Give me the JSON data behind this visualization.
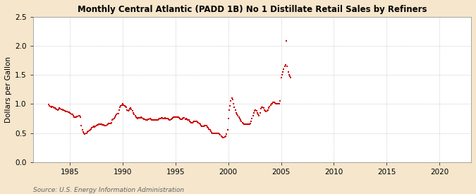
{
  "title": "Monthly Central Atlantic (PADD 1B) No 1 Distillate Retail Sales by Refiners",
  "ylabel": "Dollars per Gallon",
  "source": "Source: U.S. Energy Information Administration",
  "figure_bg": "#f5e6cc",
  "plot_bg": "#ffffff",
  "dot_color": "#cc0000",
  "xlim": [
    1981.5,
    2023
  ],
  "ylim": [
    0.0,
    2.5
  ],
  "yticks": [
    0.0,
    0.5,
    1.0,
    1.5,
    2.0,
    2.5
  ],
  "xticks": [
    1985,
    1990,
    1995,
    2000,
    2005,
    2010,
    2015,
    2020
  ],
  "data": [
    [
      1983.0,
      0.99
    ],
    [
      1983.08,
      0.97
    ],
    [
      1983.17,
      0.96
    ],
    [
      1983.25,
      0.95
    ],
    [
      1983.33,
      0.96
    ],
    [
      1983.42,
      0.94
    ],
    [
      1983.5,
      0.93
    ],
    [
      1983.58,
      0.93
    ],
    [
      1983.67,
      0.92
    ],
    [
      1983.75,
      0.91
    ],
    [
      1983.83,
      0.9
    ],
    [
      1983.92,
      0.91
    ],
    [
      1984.0,
      0.93
    ],
    [
      1984.08,
      0.92
    ],
    [
      1984.17,
      0.91
    ],
    [
      1984.25,
      0.91
    ],
    [
      1984.33,
      0.9
    ],
    [
      1984.42,
      0.89
    ],
    [
      1984.5,
      0.88
    ],
    [
      1984.58,
      0.87
    ],
    [
      1984.67,
      0.87
    ],
    [
      1984.75,
      0.87
    ],
    [
      1984.83,
      0.86
    ],
    [
      1984.92,
      0.86
    ],
    [
      1985.0,
      0.85
    ],
    [
      1985.08,
      0.84
    ],
    [
      1985.17,
      0.82
    ],
    [
      1985.25,
      0.82
    ],
    [
      1985.33,
      0.8
    ],
    [
      1985.42,
      0.78
    ],
    [
      1985.5,
      0.77
    ],
    [
      1985.58,
      0.78
    ],
    [
      1985.67,
      0.79
    ],
    [
      1985.75,
      0.79
    ],
    [
      1985.83,
      0.8
    ],
    [
      1985.92,
      0.8
    ],
    [
      1986.0,
      0.78
    ],
    [
      1986.08,
      0.63
    ],
    [
      1986.17,
      0.55
    ],
    [
      1986.25,
      0.52
    ],
    [
      1986.33,
      0.5
    ],
    [
      1986.42,
      0.48
    ],
    [
      1986.5,
      0.49
    ],
    [
      1986.58,
      0.5
    ],
    [
      1986.67,
      0.52
    ],
    [
      1986.75,
      0.53
    ],
    [
      1986.83,
      0.54
    ],
    [
      1986.92,
      0.55
    ],
    [
      1987.0,
      0.57
    ],
    [
      1987.08,
      0.59
    ],
    [
      1987.17,
      0.61
    ],
    [
      1987.25,
      0.62
    ],
    [
      1987.33,
      0.61
    ],
    [
      1987.42,
      0.62
    ],
    [
      1987.5,
      0.63
    ],
    [
      1987.58,
      0.64
    ],
    [
      1987.67,
      0.64
    ],
    [
      1987.75,
      0.65
    ],
    [
      1987.83,
      0.65
    ],
    [
      1987.92,
      0.65
    ],
    [
      1988.0,
      0.65
    ],
    [
      1988.08,
      0.64
    ],
    [
      1988.17,
      0.64
    ],
    [
      1988.25,
      0.63
    ],
    [
      1988.33,
      0.63
    ],
    [
      1988.42,
      0.63
    ],
    [
      1988.5,
      0.64
    ],
    [
      1988.58,
      0.65
    ],
    [
      1988.67,
      0.66
    ],
    [
      1988.75,
      0.67
    ],
    [
      1988.83,
      0.67
    ],
    [
      1988.92,
      0.68
    ],
    [
      1989.0,
      0.73
    ],
    [
      1989.08,
      0.74
    ],
    [
      1989.17,
      0.75
    ],
    [
      1989.25,
      0.78
    ],
    [
      1989.33,
      0.8
    ],
    [
      1989.42,
      0.82
    ],
    [
      1989.5,
      0.83
    ],
    [
      1989.58,
      0.84
    ],
    [
      1989.67,
      0.9
    ],
    [
      1989.75,
      0.95
    ],
    [
      1989.83,
      0.97
    ],
    [
      1989.92,
      0.98
    ],
    [
      1990.0,
      1.0
    ],
    [
      1990.08,
      0.98
    ],
    [
      1990.17,
      0.97
    ],
    [
      1990.25,
      0.96
    ],
    [
      1990.33,
      0.94
    ],
    [
      1990.42,
      0.9
    ],
    [
      1990.5,
      0.88
    ],
    [
      1990.58,
      0.9
    ],
    [
      1990.67,
      0.92
    ],
    [
      1990.75,
      0.93
    ],
    [
      1990.83,
      0.91
    ],
    [
      1990.92,
      0.88
    ],
    [
      1991.0,
      0.85
    ],
    [
      1991.08,
      0.82
    ],
    [
      1991.17,
      0.8
    ],
    [
      1991.25,
      0.77
    ],
    [
      1991.33,
      0.76
    ],
    [
      1991.42,
      0.75
    ],
    [
      1991.5,
      0.76
    ],
    [
      1991.58,
      0.76
    ],
    [
      1991.67,
      0.76
    ],
    [
      1991.75,
      0.77
    ],
    [
      1991.83,
      0.76
    ],
    [
      1991.92,
      0.75
    ],
    [
      1992.0,
      0.74
    ],
    [
      1992.08,
      0.74
    ],
    [
      1992.17,
      0.73
    ],
    [
      1992.25,
      0.72
    ],
    [
      1992.33,
      0.73
    ],
    [
      1992.42,
      0.74
    ],
    [
      1992.5,
      0.74
    ],
    [
      1992.58,
      0.75
    ],
    [
      1992.67,
      0.74
    ],
    [
      1992.75,
      0.73
    ],
    [
      1992.83,
      0.72
    ],
    [
      1992.92,
      0.72
    ],
    [
      1993.0,
      0.73
    ],
    [
      1993.08,
      0.73
    ],
    [
      1993.17,
      0.72
    ],
    [
      1993.25,
      0.72
    ],
    [
      1993.33,
      0.73
    ],
    [
      1993.42,
      0.74
    ],
    [
      1993.5,
      0.75
    ],
    [
      1993.58,
      0.75
    ],
    [
      1993.67,
      0.76
    ],
    [
      1993.75,
      0.76
    ],
    [
      1993.83,
      0.75
    ],
    [
      1993.92,
      0.75
    ],
    [
      1994.0,
      0.76
    ],
    [
      1994.08,
      0.75
    ],
    [
      1994.17,
      0.75
    ],
    [
      1994.25,
      0.75
    ],
    [
      1994.33,
      0.74
    ],
    [
      1994.42,
      0.73
    ],
    [
      1994.5,
      0.73
    ],
    [
      1994.58,
      0.74
    ],
    [
      1994.67,
      0.75
    ],
    [
      1994.75,
      0.76
    ],
    [
      1994.83,
      0.77
    ],
    [
      1994.92,
      0.78
    ],
    [
      1995.0,
      0.78
    ],
    [
      1995.08,
      0.78
    ],
    [
      1995.17,
      0.78
    ],
    [
      1995.25,
      0.77
    ],
    [
      1995.33,
      0.76
    ],
    [
      1995.42,
      0.75
    ],
    [
      1995.5,
      0.74
    ],
    [
      1995.58,
      0.74
    ],
    [
      1995.67,
      0.75
    ],
    [
      1995.75,
      0.76
    ],
    [
      1995.83,
      0.76
    ],
    [
      1995.92,
      0.74
    ],
    [
      1996.0,
      0.75
    ],
    [
      1996.08,
      0.74
    ],
    [
      1996.17,
      0.73
    ],
    [
      1996.25,
      0.72
    ],
    [
      1996.33,
      0.7
    ],
    [
      1996.42,
      0.69
    ],
    [
      1996.5,
      0.68
    ],
    [
      1996.58,
      0.68
    ],
    [
      1996.67,
      0.69
    ],
    [
      1996.75,
      0.7
    ],
    [
      1996.83,
      0.7
    ],
    [
      1996.92,
      0.7
    ],
    [
      1997.0,
      0.7
    ],
    [
      1997.08,
      0.69
    ],
    [
      1997.17,
      0.68
    ],
    [
      1997.25,
      0.66
    ],
    [
      1997.33,
      0.65
    ],
    [
      1997.42,
      0.63
    ],
    [
      1997.5,
      0.62
    ],
    [
      1997.58,
      0.62
    ],
    [
      1997.67,
      0.62
    ],
    [
      1997.75,
      0.63
    ],
    [
      1997.83,
      0.63
    ],
    [
      1997.92,
      0.63
    ],
    [
      1998.0,
      0.61
    ],
    [
      1998.08,
      0.59
    ],
    [
      1998.17,
      0.57
    ],
    [
      1998.25,
      0.55
    ],
    [
      1998.33,
      0.53
    ],
    [
      1998.42,
      0.51
    ],
    [
      1998.5,
      0.5
    ],
    [
      1998.58,
      0.49
    ],
    [
      1998.67,
      0.49
    ],
    [
      1998.75,
      0.49
    ],
    [
      1998.83,
      0.5
    ],
    [
      1998.92,
      0.5
    ],
    [
      1999.0,
      0.5
    ],
    [
      1999.08,
      0.49
    ],
    [
      1999.17,
      0.48
    ],
    [
      1999.25,
      0.47
    ],
    [
      1999.33,
      0.45
    ],
    [
      1999.42,
      0.43
    ],
    [
      1999.5,
      0.42
    ],
    [
      1999.58,
      0.42
    ],
    [
      1999.67,
      0.43
    ],
    [
      1999.75,
      0.45
    ],
    [
      1999.83,
      0.48
    ],
    [
      1999.92,
      0.55
    ],
    [
      2000.0,
      0.75
    ],
    [
      2000.08,
      0.9
    ],
    [
      2000.17,
      0.97
    ],
    [
      2000.25,
      1.05
    ],
    [
      2000.33,
      1.1
    ],
    [
      2000.42,
      1.08
    ],
    [
      2000.5,
      1.0
    ],
    [
      2000.58,
      0.95
    ],
    [
      2000.67,
      0.9
    ],
    [
      2000.75,
      0.85
    ],
    [
      2000.83,
      0.82
    ],
    [
      2000.92,
      0.8
    ],
    [
      2001.0,
      0.78
    ],
    [
      2001.08,
      0.75
    ],
    [
      2001.17,
      0.73
    ],
    [
      2001.25,
      0.7
    ],
    [
      2001.33,
      0.68
    ],
    [
      2001.42,
      0.67
    ],
    [
      2001.5,
      0.65
    ],
    [
      2001.58,
      0.65
    ],
    [
      2001.67,
      0.65
    ],
    [
      2001.75,
      0.65
    ],
    [
      2001.83,
      0.65
    ],
    [
      2001.92,
      0.65
    ],
    [
      2002.0,
      0.65
    ],
    [
      2002.08,
      0.67
    ],
    [
      2002.17,
      0.7
    ],
    [
      2002.25,
      0.75
    ],
    [
      2002.33,
      0.8
    ],
    [
      2002.42,
      0.85
    ],
    [
      2002.5,
      0.88
    ],
    [
      2002.58,
      0.9
    ],
    [
      2002.67,
      0.88
    ],
    [
      2002.75,
      0.85
    ],
    [
      2002.83,
      0.82
    ],
    [
      2002.92,
      0.8
    ],
    [
      2003.0,
      0.85
    ],
    [
      2003.08,
      0.92
    ],
    [
      2003.17,
      0.95
    ],
    [
      2003.25,
      0.95
    ],
    [
      2003.33,
      0.93
    ],
    [
      2003.42,
      0.9
    ],
    [
      2003.5,
      0.88
    ],
    [
      2003.58,
      0.87
    ],
    [
      2003.67,
      0.88
    ],
    [
      2003.75,
      0.9
    ],
    [
      2003.83,
      0.93
    ],
    [
      2003.92,
      0.96
    ],
    [
      2004.0,
      0.98
    ],
    [
      2004.08,
      1.0
    ],
    [
      2004.17,
      1.01
    ],
    [
      2004.25,
      1.03
    ],
    [
      2004.33,
      1.03
    ],
    [
      2004.42,
      1.02
    ],
    [
      2004.5,
      1.01
    ],
    [
      2004.58,
      1.0
    ],
    [
      2004.67,
      1.0
    ],
    [
      2004.75,
      1.0
    ],
    [
      2004.83,
      1.0
    ],
    [
      2004.92,
      1.05
    ],
    [
      2005.0,
      1.45
    ],
    [
      2005.08,
      1.5
    ],
    [
      2005.17,
      1.55
    ],
    [
      2005.25,
      1.6
    ],
    [
      2005.33,
      1.65
    ],
    [
      2005.42,
      1.67
    ],
    [
      2005.5,
      2.09
    ],
    [
      2005.58,
      1.65
    ],
    [
      2005.67,
      1.55
    ],
    [
      2005.75,
      1.5
    ],
    [
      2005.83,
      1.48
    ],
    [
      2005.92,
      1.45
    ]
  ]
}
